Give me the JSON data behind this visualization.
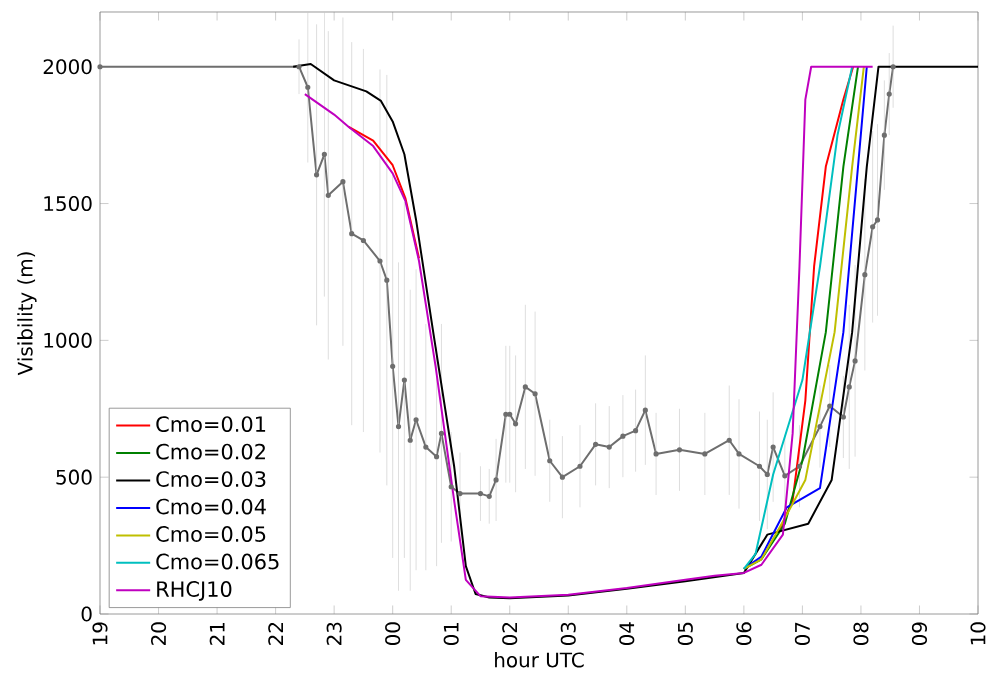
{
  "chart_data": {
    "type": "line",
    "xlabel": "hour UTC",
    "ylabel": "Visibility (m)",
    "xlim": [
      "2000-01-01T19:00",
      "2000-01-02T10:00"
    ],
    "ylim": [
      0,
      2200
    ],
    "xticks": [
      {
        "value": "2000-01-01T19:00",
        "label": "19"
      },
      {
        "value": "2000-01-01T20:00",
        "label": "20"
      },
      {
        "value": "2000-01-01T21:00",
        "label": "21"
      },
      {
        "value": "2000-01-01T22:00",
        "label": "22"
      },
      {
        "value": "2000-01-01T23:00",
        "label": "23"
      },
      {
        "value": "2000-01-02T00:00",
        "label": "00"
      },
      {
        "value": "2000-01-02T01:00",
        "label": "01"
      },
      {
        "value": "2000-01-02T02:00",
        "label": "02"
      },
      {
        "value": "2000-01-02T03:00",
        "label": "03"
      },
      {
        "value": "2000-01-02T04:00",
        "label": "04"
      },
      {
        "value": "2000-01-02T05:00",
        "label": "05"
      },
      {
        "value": "2000-01-02T06:00",
        "label": "06"
      },
      {
        "value": "2000-01-02T07:00",
        "label": "07"
      },
      {
        "value": "2000-01-02T08:00",
        "label": "08"
      },
      {
        "value": "2000-01-02T09:00",
        "label": "09"
      },
      {
        "value": "2000-01-02T10:00",
        "label": "10"
      }
    ],
    "yticks": [
      0,
      500,
      1000,
      1500,
      2000
    ],
    "legend": "bottom left",
    "marker": "none",
    "line_style": "solid",
    "grid": false,
    "series": [
      {
        "color": "#6e6e6e",
        "marker": "circle",
        "x": [
          "2000-01-01T19:00",
          "2000-01-01T22:24",
          "2000-01-01T22:33",
          "2000-01-01T22:42",
          "2000-01-01T22:50",
          "2000-01-01T22:54",
          "2000-01-01T23:09",
          "2000-01-01T23:18",
          "2000-01-01T23:30",
          "2000-01-01T23:47",
          "2000-01-01T23:54",
          "2000-01-02T00:00",
          "2000-01-02T00:06",
          "2000-01-02T00:12",
          "2000-01-02T00:18",
          "2000-01-02T00:24",
          "2000-01-02T00:34",
          "2000-01-02T00:45",
          "2000-01-02T00:50",
          "2000-01-02T01:00",
          "2000-01-02T01:09",
          "2000-01-02T01:30",
          "2000-01-02T01:39",
          "2000-01-02T01:46",
          "2000-01-02T01:56",
          "2000-01-02T02:00",
          "2000-01-02T02:06",
          "2000-01-02T02:16",
          "2000-01-02T02:26",
          "2000-01-02T02:41",
          "2000-01-02T02:54",
          "2000-01-02T03:12",
          "2000-01-02T03:28",
          "2000-01-02T03:42",
          "2000-01-02T03:56",
          "2000-01-02T04:09",
          "2000-01-02T04:19",
          "2000-01-02T04:30",
          "2000-01-02T04:54",
          "2000-01-02T05:20",
          "2000-01-02T05:45",
          "2000-01-02T05:55",
          "2000-01-02T06:16",
          "2000-01-02T06:24",
          "2000-01-02T06:30",
          "2000-01-02T06:42",
          "2000-01-02T06:57",
          "2000-01-02T07:18",
          "2000-01-02T07:28",
          "2000-01-02T07:42",
          "2000-01-02T07:48",
          "2000-01-02T07:54",
          "2000-01-02T08:04",
          "2000-01-02T08:12",
          "2000-01-02T08:17",
          "2000-01-02T08:24",
          "2000-01-02T08:29",
          "2000-01-02T08:33"
        ],
        "values": [
          2000,
          2000,
          1925,
          1605,
          1680,
          1530,
          1580,
          1390,
          1365,
          1290,
          1220,
          905,
          685,
          855,
          635,
          710,
          610,
          575,
          660,
          465,
          440,
          440,
          430,
          490,
          730,
          730,
          695,
          830,
          805,
          560,
          500,
          540,
          620,
          610,
          650,
          670,
          745,
          585,
          600,
          585,
          635,
          585,
          540,
          510,
          610,
          505,
          540,
          685,
          760,
          720,
          830,
          925,
          1240,
          1415,
          1440,
          1750,
          1900,
          2000
        ],
        "errors": [
          null,
          100,
          275,
          550,
          520,
          600,
          600,
          700,
          700,
          700,
          750,
          700,
          600,
          650,
          550,
          550,
          450,
          400,
          400,
          200,
          150,
          100,
          100,
          150,
          250,
          250,
          250,
          300,
          300,
          150,
          150,
          150,
          150,
          150,
          150,
          150,
          200,
          150,
          150,
          150,
          200,
          200,
          200,
          200,
          200,
          150,
          150,
          150,
          150,
          150,
          300,
          350,
          350,
          350,
          350,
          200,
          150,
          150
        ]
      },
      {
        "name": "Cmo=0.01",
        "color": "#ff0000",
        "x": [
          "2000-01-01T23:15",
          "2000-01-01T23:40",
          "2000-01-02T00:00",
          "2000-01-02T00:13",
          "2000-01-02T00:27",
          "2000-01-02T00:44",
          "2000-01-02T01:03",
          "2000-01-02T01:15",
          "2000-01-02T01:30",
          "2000-01-02T02:00",
          "2000-01-02T03:00",
          "2000-01-02T04:00",
          "2000-01-02T05:00",
          "2000-01-02T05:30",
          "2000-01-02T06:00",
          "2000-01-02T06:18",
          "2000-01-02T06:36",
          "2000-01-02T06:50",
          "2000-01-02T07:03",
          "2000-01-02T07:12",
          "2000-01-02T07:24",
          "2000-01-02T07:42",
          "2000-01-02T07:52"
        ],
        "values": [
          1780,
          1730,
          1640,
          1520,
          1300,
          null,
          null,
          null,
          null,
          null,
          null,
          null,
          null,
          null,
          null,
          null,
          300,
          416,
          780,
          1270,
          1635,
          1880,
          2000
        ]
      },
      {
        "name": "Cmo=0.02",
        "color": "#008000",
        "x": [
          "2000-01-02T06:00",
          "2000-01-02T06:18",
          "2000-01-02T06:42",
          "2000-01-02T07:00",
          "2000-01-02T07:24",
          "2000-01-02T07:42",
          "2000-01-02T07:57"
        ],
        "values": [
          165,
          200,
          330,
          560,
          1030,
          1635,
          2000
        ]
      },
      {
        "name": "Cmo=0.03",
        "color": "#000000",
        "x": [
          "2000-01-01T22:18",
          "2000-01-01T22:36",
          "2000-01-01T23:00",
          "2000-01-01T23:33",
          "2000-01-01T23:48",
          "2000-01-02T00:00",
          "2000-01-02T00:12",
          "2000-01-02T00:24",
          "2000-01-02T00:42",
          "2000-01-02T01:03",
          "2000-01-02T01:15",
          "2000-01-02T01:25",
          "2000-01-02T01:39",
          "2000-01-02T02:00",
          "2000-01-02T03:00",
          "2000-01-02T04:00",
          "2000-01-02T05:00",
          "2000-01-02T06:00",
          "2000-01-02T06:24",
          "2000-01-02T07:06",
          "2000-01-02T07:30",
          "2000-01-02T07:51",
          "2000-01-02T08:06",
          "2000-01-02T08:18",
          "2000-01-02T10:00"
        ],
        "values": [
          2000,
          2010,
          1950,
          1910,
          1875,
          1800,
          1680,
          1440,
          1020,
          540,
          175,
          73,
          60,
          58,
          68,
          92,
          120,
          150,
          290,
          330,
          490,
          1030,
          1635,
          2000,
          2000
        ]
      },
      {
        "name": "Cmo=0.04",
        "color": "#0000ff",
        "x": [
          "2000-01-02T06:00",
          "2000-01-02T06:18",
          "2000-01-02T06:44",
          "2000-01-02T07:18",
          "2000-01-02T07:42",
          "2000-01-02T07:57",
          "2000-01-02T08:06"
        ],
        "values": [
          165,
          210,
          390,
          460,
          1030,
          1635,
          2000
        ]
      },
      {
        "name": "Cmo=0.05",
        "color": "#bfbf00",
        "x": [
          "2000-01-02T06:00",
          "2000-01-02T06:18",
          "2000-01-02T06:42",
          "2000-01-02T07:03",
          "2000-01-02T07:33",
          "2000-01-02T07:51",
          "2000-01-02T08:03"
        ],
        "values": [
          165,
          200,
          350,
          490,
          1030,
          1635,
          2000
        ]
      },
      {
        "name": "Cmo=0.065",
        "color": "#00bfbf",
        "x": [
          "2000-01-02T06:00",
          "2000-01-02T06:12",
          "2000-01-02T06:30",
          "2000-01-02T07:00",
          "2000-01-02T07:18",
          "2000-01-02T07:36",
          "2000-01-02T07:51"
        ],
        "values": [
          165,
          220,
          510,
          855,
          1270,
          1750,
          2000
        ]
      },
      {
        "name": "RHCJ10",
        "color": "#bf00bf",
        "x": [
          "2000-01-01T22:30",
          "2000-01-01T23:00",
          "2000-01-01T23:15",
          "2000-01-01T23:40",
          "2000-01-02T00:00",
          "2000-01-02T00:13",
          "2000-01-02T00:27",
          "2000-01-02T00:44",
          "2000-01-02T01:03",
          "2000-01-02T01:15",
          "2000-01-02T01:30",
          "2000-01-02T02:00",
          "2000-01-02T03:00",
          "2000-01-02T04:00",
          "2000-01-02T05:00",
          "2000-01-02T05:30",
          "2000-01-02T06:00",
          "2000-01-02T06:18",
          "2000-01-02T06:40",
          "2000-01-02T06:50",
          "2000-01-02T06:57",
          "2000-01-02T07:03",
          "2000-01-02T07:09",
          "2000-01-02T08:12"
        ],
        "values": [
          1900,
          1825,
          1780,
          1710,
          1610,
          1510,
          1290,
          905,
          415,
          125,
          65,
          60,
          70,
          95,
          125,
          140,
          150,
          180,
          290,
          660,
          1270,
          1880,
          2000,
          2000
        ]
      }
    ]
  }
}
